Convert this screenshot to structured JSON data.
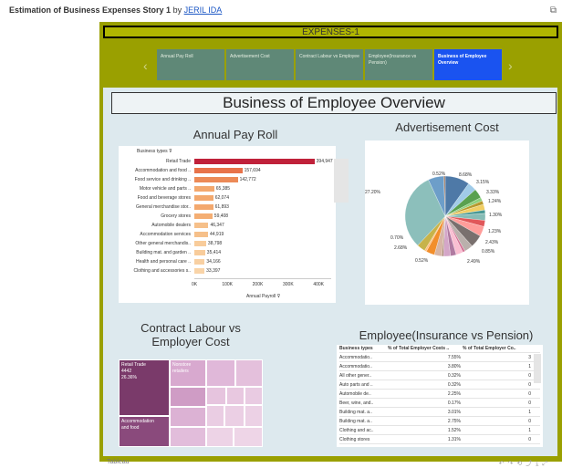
{
  "story": {
    "title": "Estimation of Business Expenses Story 1",
    "by": "by",
    "author": "JERIL IDA",
    "header": "EXPENSES-1"
  },
  "tabs": [
    {
      "label": "Annual Pay Roll",
      "active": false
    },
    {
      "label": "Advertisement Cost",
      "active": false
    },
    {
      "label": "Contract Labour vs Employee",
      "active": false
    },
    {
      "label": "Employee(Insurance vs Pension)",
      "active": false
    },
    {
      "label": "Business of Employee Overview",
      "active": true
    }
  ],
  "overview": {
    "title": "Business of Employee Overview"
  },
  "payroll": {
    "title": "Annual Pay Roll",
    "filter_label": "Business types",
    "axis_title": "Annual Payroll",
    "ticks": [
      "0K",
      "100K",
      "200K",
      "300K",
      "400K"
    ],
    "bars": [
      {
        "label": "Retail Trade",
        "value": 394947,
        "display": "394,947",
        "color": "#c0213a"
      },
      {
        "label": "Accommodation and food ..",
        "value": 157694,
        "display": "157,694",
        "color": "#e8734a"
      },
      {
        "label": "Food service and drinking ..",
        "value": 142772,
        "display": "142,772",
        "color": "#ec8a57"
      },
      {
        "label": "Motor vehicle and parts ..",
        "value": 65385,
        "display": "65,385",
        "color": "#f3a86e"
      },
      {
        "label": "Food and beverage stores",
        "value": 62074,
        "display": "62,074",
        "color": "#f3a86e"
      },
      {
        "label": "General merchandise stor..",
        "value": 61893,
        "display": "61,893",
        "color": "#f3a86e"
      },
      {
        "label": "Grocery stores",
        "value": 59408,
        "display": "59,408",
        "color": "#f4ae73"
      },
      {
        "label": "Automobile dealers",
        "value": 46347,
        "display": "46,347",
        "color": "#f6c08a"
      },
      {
        "label": "Accommodation services",
        "value": 44919,
        "display": "44,919",
        "color": "#f6c08a"
      },
      {
        "label": "Other general merchandis..",
        "value": 38798,
        "display": "38,798",
        "color": "#f8cc9b"
      },
      {
        "label": "Building mat. and garden ..",
        "value": 35414,
        "display": "35,414",
        "color": "#f8cc9b"
      },
      {
        "label": "Health and personal care ..",
        "value": 34166,
        "display": "34,166",
        "color": "#f8d0a2"
      },
      {
        "label": "Clothing and accessories s..",
        "value": 33397,
        "display": "33,397",
        "color": "#f9d4a8"
      }
    ]
  },
  "advertisement": {
    "title": "Advertisement Cost",
    "labels": [
      {
        "text": "0.52%"
      },
      {
        "text": "8.68%"
      },
      {
        "text": "3.15%"
      },
      {
        "text": "3.33%"
      },
      {
        "text": "1.24%"
      },
      {
        "text": "1.30%"
      },
      {
        "text": "1.23%"
      },
      {
        "text": "2.43%"
      },
      {
        "text": "0.85%"
      },
      {
        "text": "2.49%"
      },
      {
        "text": "0.52%"
      },
      {
        "text": "2.68%"
      },
      {
        "text": "0.70%"
      },
      {
        "text": "27.20%"
      }
    ],
    "slices": [
      {
        "value": 8.68,
        "color": "#4e79a7"
      },
      {
        "value": 3.15,
        "color": "#a0cbe8"
      },
      {
        "value": 3.33,
        "color": "#59a14f"
      },
      {
        "value": 1.24,
        "color": "#8cd17d"
      },
      {
        "value": 1.3,
        "color": "#b6992d"
      },
      {
        "value": 2.0,
        "color": "#f1ce63"
      },
      {
        "value": 1.23,
        "color": "#499894"
      },
      {
        "value": 2.43,
        "color": "#86bcb6"
      },
      {
        "value": 2.2,
        "color": "#e15759"
      },
      {
        "value": 3.5,
        "color": "#ff9d9a"
      },
      {
        "value": 4.5,
        "color": "#79706e"
      },
      {
        "value": 3.0,
        "color": "#bab0ac"
      },
      {
        "value": 0.85,
        "color": "#d37295"
      },
      {
        "value": 2.49,
        "color": "#fabfd2"
      },
      {
        "value": 2.0,
        "color": "#b07aa1"
      },
      {
        "value": 2.5,
        "color": "#d4a6c8"
      },
      {
        "value": 0.52,
        "color": "#9d7660"
      },
      {
        "value": 2.68,
        "color": "#d7b5a6"
      },
      {
        "value": 3.0,
        "color": "#f28e2b"
      },
      {
        "value": 0.7,
        "color": "#ffbe7d"
      },
      {
        "value": 3.0,
        "color": "#c7b34a"
      },
      {
        "value": 27.2,
        "color": "#8cbfbb"
      },
      {
        "value": 5.5,
        "color": "#6d9ec9"
      },
      {
        "value": 0.52,
        "color": "#9c755f"
      }
    ]
  },
  "contract": {
    "title_line1": "Contract Labour vs",
    "title_line2": "Employer Cost",
    "cells": [
      {
        "label": "Retail Trade",
        "l2": "4442",
        "l3": "26.36%",
        "color": "#7a3a6a"
      },
      {
        "label": "Accommodation",
        "l2": "and food",
        "l3": "",
        "color": "#8a4a7c"
      },
      {
        "label": "Nonstore",
        "l2": "retailers",
        "l3": "",
        "color": "#d8a9cf"
      },
      {
        "label": "",
        "l2": "",
        "l3": "",
        "color": "#d8a9cf"
      }
    ]
  },
  "employee": {
    "title": "Employee(Insurance vs Pension)",
    "headers": [
      "Business types",
      "% of Total Employer Costs ..",
      "% of Total Employer Co.."
    ],
    "rows": [
      [
        "Accommodatio..",
        "7.55%",
        "3"
      ],
      [
        "Accommodatio..",
        "3.80%",
        "1"
      ],
      [
        "All other gener..",
        "0.32%",
        "0"
      ],
      [
        "Auto parts and ..",
        "0.32%",
        "0"
      ],
      [
        "Automobile de..",
        "2.25%",
        "0"
      ],
      [
        "Beer, wine, and..",
        "0.17%",
        "0"
      ],
      [
        "Building mat. a..",
        "3.01%",
        "1"
      ],
      [
        "Building mat. a..",
        "2.75%",
        "0"
      ],
      [
        "Clothing and ac..",
        "1.52%",
        "1"
      ],
      [
        "Clothing stores",
        "1.31%",
        "0"
      ]
    ]
  },
  "footer": {
    "label": "Tableau"
  }
}
